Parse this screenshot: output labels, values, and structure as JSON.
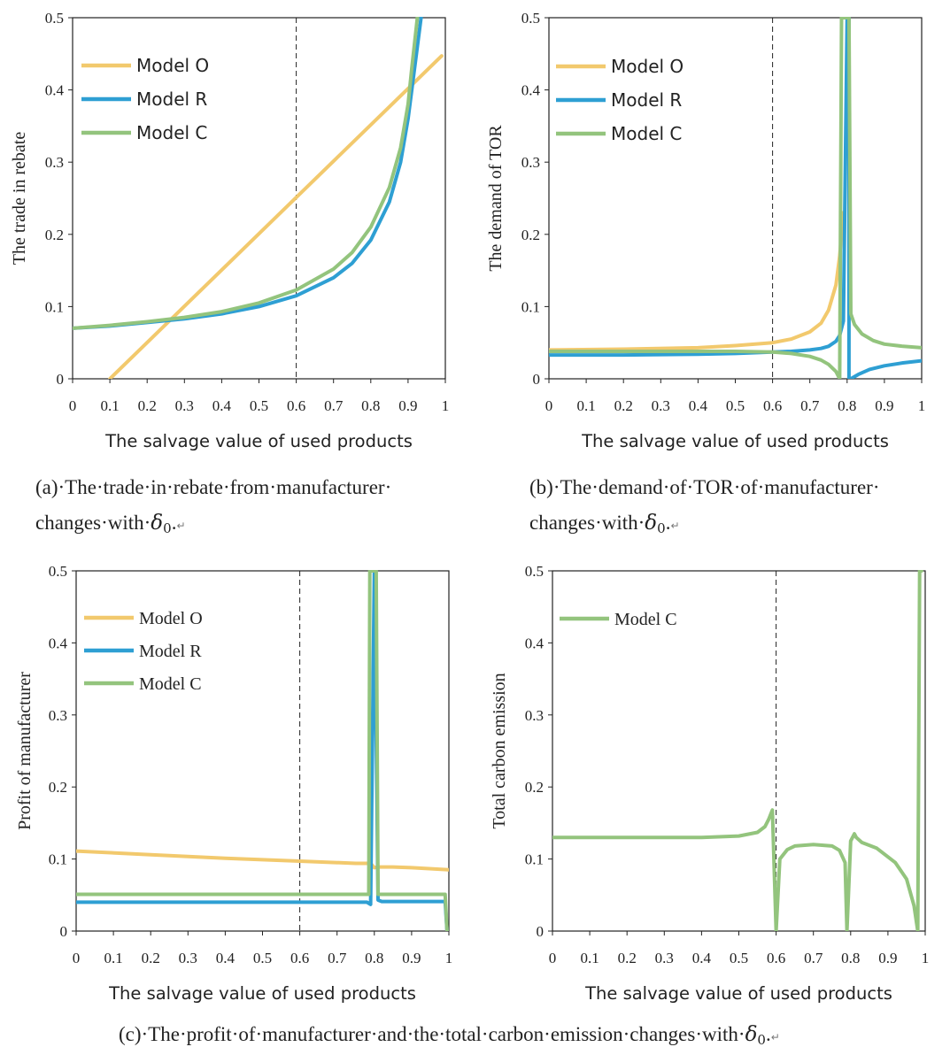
{
  "colors": {
    "model_o": "#f2c96d",
    "model_r": "#2e9fd3",
    "model_c": "#93c47d",
    "axis": "#222222"
  },
  "captions": [
    {
      "line1": "(a)·The·trade·in·rebate·from·manufacturer·",
      "line2": "changes·with·",
      "symbol": "δ",
      "sub": "0",
      "tail": ".",
      "mark": "↵"
    },
    {
      "line1": "(b)·The·demand·of·TOR·of·manufacturer·",
      "line2": "changes·with·",
      "symbol": "δ",
      "sub": "0",
      "tail": ".",
      "mark": "↵"
    },
    {
      "line1": "(c)·The·profit·of·manufacturer·and·the·total·carbon·emission·changes·with·",
      "symbol": "δ",
      "sub": "0",
      "tail": ".",
      "mark": "↵"
    }
  ],
  "chart_data": [
    {
      "id": "a",
      "type": "line",
      "xlabel": "The salvage value of used products",
      "ylabel": "The trade in rebate",
      "xlim": [
        0,
        1
      ],
      "ylim": [
        0,
        0.5
      ],
      "xticks": [
        "0",
        "0.1",
        "0.2",
        "0.3",
        "0.4",
        "0.5",
        "0.6",
        "0.7",
        "0.8",
        "0.9",
        "1"
      ],
      "yticks": [
        "0",
        "0.1",
        "0.2",
        "0.3",
        "0.4",
        "0.5"
      ],
      "vline": 0.6,
      "grid": false,
      "legend": "top-left",
      "series": [
        {
          "name": "Model O",
          "color": "#f2c96d",
          "x": [
            0.1,
            0.99
          ],
          "y": [
            0.0,
            0.447
          ]
        },
        {
          "name": "Model R",
          "color": "#2e9fd3",
          "x": [
            0,
            0.1,
            0.2,
            0.3,
            0.4,
            0.5,
            0.6,
            0.7,
            0.75,
            0.8,
            0.85,
            0.88,
            0.9,
            0.92,
            0.935
          ],
          "y": [
            0.07,
            0.073,
            0.078,
            0.083,
            0.09,
            0.1,
            0.115,
            0.14,
            0.16,
            0.192,
            0.245,
            0.3,
            0.36,
            0.44,
            0.5
          ]
        },
        {
          "name": "Model C",
          "color": "#93c47d",
          "x": [
            0,
            0.1,
            0.2,
            0.3,
            0.4,
            0.5,
            0.6,
            0.7,
            0.75,
            0.8,
            0.85,
            0.88,
            0.9,
            0.91,
            0.925
          ],
          "y": [
            0.07,
            0.074,
            0.079,
            0.085,
            0.093,
            0.105,
            0.123,
            0.152,
            0.175,
            0.21,
            0.265,
            0.32,
            0.38,
            0.43,
            0.5
          ]
        }
      ]
    },
    {
      "id": "b",
      "type": "line",
      "xlabel": "The salvage value of used products",
      "ylabel": "The demand of TOR",
      "xlim": [
        0,
        1
      ],
      "ylim": [
        0,
        0.5
      ],
      "xticks": [
        "0",
        "0.1",
        "0.2",
        "0.3",
        "0.4",
        "0.5",
        "0.6",
        "0.7",
        "0.8",
        "0.9",
        "1"
      ],
      "yticks": [
        "0",
        "0.1",
        "0.2",
        "0.3",
        "0.4",
        "0.5"
      ],
      "vline": 0.6,
      "grid": false,
      "legend": "top-left",
      "series": [
        {
          "name": "Model O",
          "color": "#f2c96d",
          "x": [
            0,
            0.2,
            0.4,
            0.5,
            0.6,
            0.65,
            0.7,
            0.73,
            0.75,
            0.77,
            0.78,
            0.79
          ],
          "y": [
            0.04,
            0.041,
            0.043,
            0.046,
            0.05,
            0.055,
            0.065,
            0.077,
            0.095,
            0.13,
            0.17,
            0.23
          ]
        },
        {
          "name": "Model R",
          "color": "#2e9fd3",
          "x": [
            0,
            0.2,
            0.4,
            0.5,
            0.6,
            0.65,
            0.7,
            0.73,
            0.75,
            0.77,
            0.78,
            0.79,
            0.8,
            0.805,
            0.805,
            0.81,
            0.81,
            0.83,
            0.86,
            0.9,
            0.95,
            1.0
          ],
          "y": [
            0.033,
            0.033,
            0.034,
            0.035,
            0.037,
            0.038,
            0.04,
            0.042,
            0.045,
            0.052,
            0.06,
            0.08,
            0.5,
            0.5,
            0.0,
            0.0,
            0.0,
            0.006,
            0.013,
            0.018,
            0.022,
            0.025
          ]
        },
        {
          "name": "Model C",
          "color": "#93c47d",
          "x": [
            0,
            0.2,
            0.4,
            0.5,
            0.6,
            0.65,
            0.7,
            0.73,
            0.75,
            0.77,
            0.78,
            0.785,
            0.79,
            0.8,
            0.805,
            0.81,
            0.82,
            0.84,
            0.87,
            0.9,
            0.95,
            1.0
          ],
          "y": [
            0.038,
            0.038,
            0.038,
            0.038,
            0.037,
            0.035,
            0.031,
            0.026,
            0.02,
            0.01,
            0.0,
            0.5,
            0.5,
            0.5,
            0.5,
            0.09,
            0.075,
            0.062,
            0.053,
            0.048,
            0.045,
            0.043
          ]
        }
      ]
    },
    {
      "id": "c1",
      "type": "line",
      "xlabel": "The salvage value of used products",
      "ylabel": "Profit of manufacturer",
      "xlim": [
        0,
        1
      ],
      "ylim": [
        0,
        0.5
      ],
      "xticks": [
        "0",
        "0.1",
        "0.2",
        "0.3",
        "0.4",
        "0.5",
        "0.6",
        "0.7",
        "0.8",
        "0.9",
        "1"
      ],
      "yticks": [
        "0",
        "0.1",
        "0.2",
        "0.3",
        "0.4",
        "0.5"
      ],
      "vline": 0.6,
      "grid": false,
      "legend": "top-left",
      "series": [
        {
          "name": "Model O",
          "color": "#f2c96d",
          "x": [
            0,
            0.2,
            0.4,
            0.6,
            0.75,
            0.79,
            0.8,
            0.81,
            0.85,
            0.9,
            1.0
          ],
          "y": [
            0.111,
            0.106,
            0.101,
            0.097,
            0.094,
            0.094,
            0.088,
            0.089,
            0.089,
            0.088,
            0.085
          ]
        },
        {
          "name": "Model R",
          "color": "#2e9fd3",
          "x": [
            0,
            0.6,
            0.78,
            0.79,
            0.8,
            0.81,
            0.82,
            0.99,
            0.995
          ],
          "y": [
            0.04,
            0.04,
            0.04,
            0.037,
            0.5,
            0.043,
            0.041,
            0.041,
            0.0
          ]
        },
        {
          "name": "Model C",
          "color": "#93c47d",
          "x": [
            0,
            0.6,
            0.785,
            0.788,
            0.79,
            0.805,
            0.81,
            0.99,
            0.995
          ],
          "y": [
            0.051,
            0.051,
            0.051,
            0.5,
            0.5,
            0.5,
            0.051,
            0.051,
            0.0
          ]
        }
      ]
    },
    {
      "id": "c2",
      "type": "line",
      "xlabel": "The salvage value of used products",
      "ylabel": "Total carbon emission",
      "xlim": [
        0,
        1
      ],
      "ylim": [
        0,
        0.5
      ],
      "xticks": [
        "0",
        "0.1",
        "0.2",
        "0.3",
        "0.4",
        "0.5",
        "0.6",
        "0.7",
        "0.8",
        "0.9",
        "1"
      ],
      "yticks": [
        "0",
        "0.1",
        "0.2",
        "0.3",
        "0.4",
        "0.5"
      ],
      "vline": 0.6,
      "grid": false,
      "legend": "top-left",
      "series": [
        {
          "name": "Model C",
          "color": "#93c47d",
          "x": [
            0,
            0.2,
            0.4,
            0.5,
            0.55,
            0.57,
            0.58,
            0.59,
            0.6,
            0.61,
            0.63,
            0.65,
            0.7,
            0.75,
            0.77,
            0.785,
            0.79,
            0.8,
            0.81,
            0.815,
            0.83,
            0.87,
            0.92,
            0.95,
            0.97,
            0.98,
            0.985,
            0.99
          ],
          "y": [
            0.13,
            0.13,
            0.13,
            0.132,
            0.137,
            0.145,
            0.155,
            0.168,
            0.0,
            0.1,
            0.113,
            0.118,
            0.12,
            0.118,
            0.112,
            0.095,
            0.0,
            0.125,
            0.135,
            0.13,
            0.123,
            0.115,
            0.095,
            0.072,
            0.035,
            0.0,
            0.5,
            0.5
          ]
        }
      ]
    }
  ]
}
